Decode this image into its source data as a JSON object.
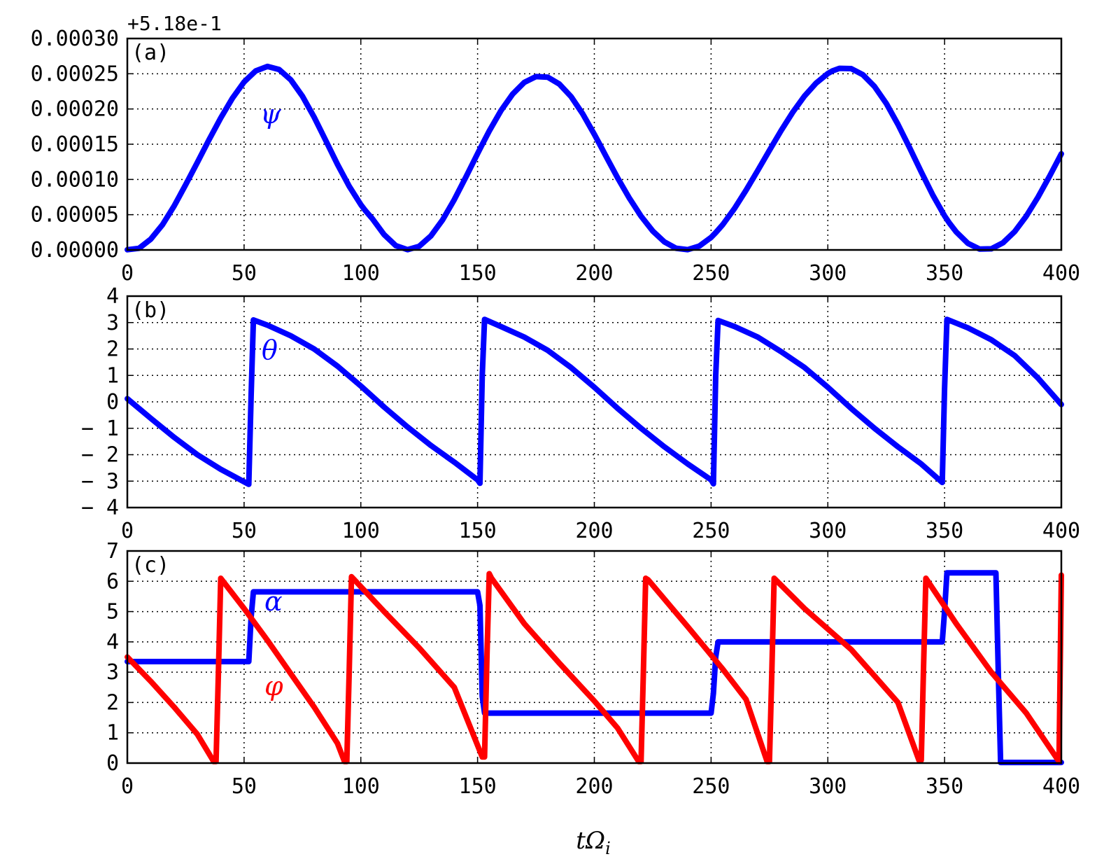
{
  "figure": {
    "xlabel_main": "tΩ",
    "xlabel_sub": "i"
  },
  "chart_data": [
    {
      "type": "line",
      "panel_label": "(a)",
      "offset_text": "+5.18e-1",
      "xlim": [
        0,
        400
      ],
      "ylim": [
        0.0,
        0.0003
      ],
      "grid": true,
      "xticks": [
        0,
        50,
        100,
        150,
        200,
        250,
        300,
        350,
        400
      ],
      "xtick_labels": [
        "0",
        "50",
        "100",
        "150",
        "200",
        "250",
        "300",
        "350",
        "400"
      ],
      "yticks": [
        0.0,
        5e-05,
        0.0001,
        0.00015,
        0.0002,
        0.00025,
        0.0003
      ],
      "ytick_labels": [
        "0.00000",
        "0.00005",
        "0.00010",
        "0.00015",
        "0.00020",
        "0.00025",
        "0.00030"
      ],
      "series": [
        {
          "name": "ψ",
          "color": "#0000ff",
          "x": [
            0,
            5,
            10,
            15,
            20,
            25,
            30,
            35,
            40,
            45,
            50,
            52,
            55,
            60,
            65,
            70,
            75,
            80,
            85,
            90,
            95,
            100,
            102,
            105,
            110,
            115,
            120,
            125,
            130,
            135,
            140,
            145,
            150,
            152,
            155,
            160,
            165,
            170,
            175,
            180,
            185,
            190,
            195,
            200,
            202,
            205,
            210,
            215,
            220,
            225,
            230,
            235,
            240,
            245,
            250,
            252,
            255,
            260,
            265,
            270,
            275,
            280,
            285,
            290,
            295,
            300,
            302,
            305,
            310,
            315,
            320,
            325,
            330,
            335,
            340,
            345,
            350,
            352,
            355,
            360,
            365,
            370,
            375,
            380,
            385,
            390,
            395,
            400
          ],
          "y": [
            3e-07,
            2.3e-06,
            1.52e-05,
            3.56e-05,
            6.22e-05,
            9.26e-05,
            0.0001242,
            0.0001564,
            0.0001873,
            0.0002153,
            0.0002383,
            0.0002448,
            0.0002541,
            0.0002604,
            0.000256,
            0.0002414,
            0.0002181,
            0.0001884,
            0.0001551,
            0.0001214,
            9.04e-05,
            6.42e-05,
            5.56e-05,
            4.41e-05,
            2.17e-05,
            6.1e-06,
            4e-07,
            5.2e-06,
            1.99e-05,
            4.26e-05,
            7.13e-05,
            0.0001034,
            0.0001366,
            0.0001497,
            0.0001688,
            0.0001976,
            0.0002211,
            0.0002377,
            0.000246,
            0.0002452,
            0.0002354,
            0.0002177,
            0.0001932,
            0.000164,
            0.0001517,
            0.0001329,
            0.000102,
            7.34e-05,
            4.79e-05,
            2.69e-05,
            1.14e-05,
            2.4e-06,
            4e-07,
            5.6e-06,
            1.78e-05,
            2.45e-05,
            3.6e-05,
            5.87e-05,
            8.47e-05,
            0.0001127,
            0.0001414,
            0.0001694,
            0.0001955,
            0.0002183,
            0.0002368,
            0.0002503,
            0.000254,
            0.0002577,
            0.0002573,
            0.0002486,
            0.0002319,
            0.000208,
            0.0001783,
            0.0001451,
            0.0001107,
            7.76e-05,
            4.84e-05,
            3.84e-05,
            2.55e-05,
            9.3e-06,
            1.2e-06,
            1.6e-06,
            1.01e-05,
            2.59e-05,
            4.8e-05,
            7.48e-05,
            0.0001048,
            0.0001364
          ],
          "label_text": "ψ"
        }
      ]
    },
    {
      "type": "line",
      "panel_label": "(b)",
      "xlim": [
        0,
        400
      ],
      "ylim": [
        -4,
        4
      ],
      "grid": true,
      "xticks": [
        0,
        50,
        100,
        150,
        200,
        250,
        300,
        350,
        400
      ],
      "xtick_labels": [
        "0",
        "50",
        "100",
        "150",
        "200",
        "250",
        "300",
        "350",
        "400"
      ],
      "yticks": [
        -4,
        -3,
        -2,
        -1,
        0,
        1,
        2,
        3,
        4
      ],
      "ytick_labels": [
        "− 4",
        "− 3",
        "− 2",
        "− 1",
        "0",
        "1",
        "2",
        "3",
        "4"
      ],
      "series": [
        {
          "name": "θ",
          "color": "#0000ff",
          "x": [
            0,
            10,
            20,
            30,
            40,
            52,
            53,
            54,
            60,
            70,
            80,
            90,
            100,
            110,
            120,
            130,
            140,
            150,
            151,
            152,
            153,
            160,
            170,
            180,
            190,
            200,
            210,
            220,
            230,
            240,
            250,
            251,
            252,
            253,
            260,
            270,
            280,
            290,
            300,
            310,
            320,
            330,
            340,
            349,
            350,
            351,
            360,
            370,
            380,
            390,
            400
          ],
          "y": [
            0.12,
            -0.62,
            -1.34,
            -2.0,
            -2.55,
            -3.12,
            0.2,
            3.1,
            2.9,
            2.5,
            2.0,
            1.35,
            0.6,
            -0.2,
            -0.95,
            -1.65,
            -2.28,
            -2.95,
            -3.08,
            1.0,
            3.12,
            2.85,
            2.45,
            1.95,
            1.3,
            0.55,
            -0.25,
            -1.0,
            -1.7,
            -2.35,
            -2.95,
            -3.1,
            1.0,
            3.08,
            2.85,
            2.45,
            1.9,
            1.3,
            0.55,
            -0.25,
            -1.0,
            -1.7,
            -2.35,
            -3.05,
            0.5,
            3.12,
            2.8,
            2.35,
            1.75,
            0.9,
            -0.1
          ],
          "label_text": "θ"
        }
      ]
    },
    {
      "type": "line",
      "panel_label": "(c)",
      "xlim": [
        0,
        400
      ],
      "ylim": [
        0,
        7
      ],
      "grid": true,
      "xticks": [
        0,
        50,
        100,
        150,
        200,
        250,
        300,
        350,
        400
      ],
      "xtick_labels": [
        "0",
        "50",
        "100",
        "150",
        "200",
        "250",
        "300",
        "350",
        "400"
      ],
      "yticks": [
        0,
        1,
        2,
        3,
        4,
        5,
        6,
        7
      ],
      "ytick_labels": [
        "0",
        "1",
        "2",
        "3",
        "4",
        "5",
        "6",
        "7"
      ],
      "series": [
        {
          "name": "α",
          "color": "#0000ff",
          "x": [
            0,
            52,
            53,
            54,
            150,
            151,
            152,
            153,
            250,
            251,
            252,
            253,
            349,
            350,
            351,
            372,
            373,
            374,
            400
          ],
          "y": [
            3.35,
            3.35,
            4.8,
            5.65,
            5.65,
            5.2,
            2.2,
            1.65,
            1.65,
            2.3,
            3.5,
            4.0,
            4.0,
            5.0,
            6.28,
            6.28,
            3.0,
            0.02,
            0.02
          ],
          "label_text": "α"
        },
        {
          "name": "φ",
          "color": "#ff0000",
          "x": [
            0,
            10,
            20,
            30,
            37,
            38,
            39,
            40,
            50,
            60,
            70,
            80,
            90,
            93,
            94,
            95,
            96,
            110,
            125,
            140,
            152,
            153,
            154,
            155,
            156,
            170,
            185,
            200,
            210,
            219,
            220,
            221,
            222,
            223,
            240,
            255,
            265,
            274,
            275,
            276,
            277,
            290,
            310,
            330,
            339,
            340,
            341,
            342,
            355,
            370,
            385,
            399,
            400
          ],
          "y": [
            3.5,
            2.7,
            1.85,
            0.95,
            0.05,
            0.05,
            3.0,
            6.1,
            5.1,
            4.05,
            2.95,
            1.85,
            0.65,
            0.05,
            0.05,
            3.0,
            6.15,
            5.0,
            3.8,
            2.5,
            0.2,
            0.2,
            3.5,
            6.25,
            6.1,
            4.6,
            3.3,
            2.05,
            1.15,
            0.05,
            0.05,
            3.0,
            6.1,
            6.05,
            4.5,
            3.1,
            2.1,
            0.05,
            0.05,
            3.0,
            6.1,
            5.1,
            3.75,
            2.0,
            0.1,
            0.1,
            3.2,
            6.1,
            4.6,
            3.0,
            1.65,
            0.05,
            6.2
          ],
          "label_text": "φ"
        }
      ]
    }
  ]
}
